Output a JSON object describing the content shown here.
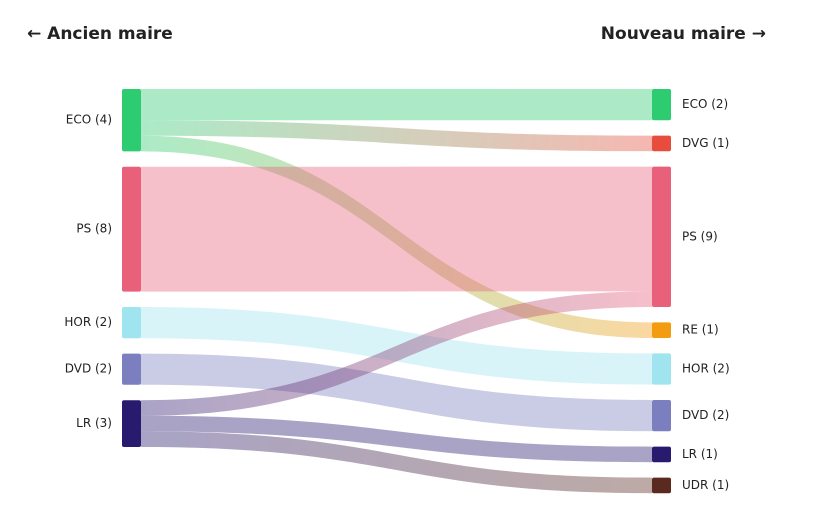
{
  "chart_data": {
    "type": "sankey",
    "columns": [
      {
        "title": "← Ancien maire",
        "nodes": [
          {
            "label": "ECO (4)",
            "color": "#2ecc71"
          },
          {
            "label": "PS (8)",
            "color": "#e8607a"
          },
          {
            "label": "HOR (2)",
            "color": "#a0e4f0"
          },
          {
            "label": "DVD (2)",
            "color": "#7b7fc0"
          },
          {
            "label": "LR (3)",
            "color": "#271a6f"
          }
        ]
      },
      {
        "title": "Nouveau maire →",
        "nodes": [
          {
            "label": "ECO (2)",
            "color": "#2ecc71"
          },
          {
            "label": "DVG (1)",
            "color": "#e74c3c"
          },
          {
            "label": "PS (9)",
            "color": "#e8607a"
          },
          {
            "label": "RE (1)",
            "color": "#f39c12"
          },
          {
            "label": "HOR (2)",
            "color": "#a0e4f0"
          },
          {
            "label": "DVD (2)",
            "color": "#7b7fc0"
          },
          {
            "label": "LR (1)",
            "color": "#271a6f"
          },
          {
            "label": "UDR (1)",
            "color": "#5a2a1f"
          }
        ]
      }
    ],
    "links": [
      {
        "source": 0,
        "target": 0,
        "value": 2
      },
      {
        "source": 0,
        "target": 1,
        "value": 1
      },
      {
        "source": 0,
        "target": 3,
        "value": 1
      },
      {
        "source": 1,
        "target": 2,
        "value": 8
      },
      {
        "source": 2,
        "target": 4,
        "value": 2
      },
      {
        "source": 3,
        "target": 5,
        "value": 2
      },
      {
        "source": 4,
        "target": 2,
        "value": 1
      },
      {
        "source": 4,
        "target": 6,
        "value": 1
      },
      {
        "source": 4,
        "target": 7,
        "value": 1
      }
    ]
  }
}
